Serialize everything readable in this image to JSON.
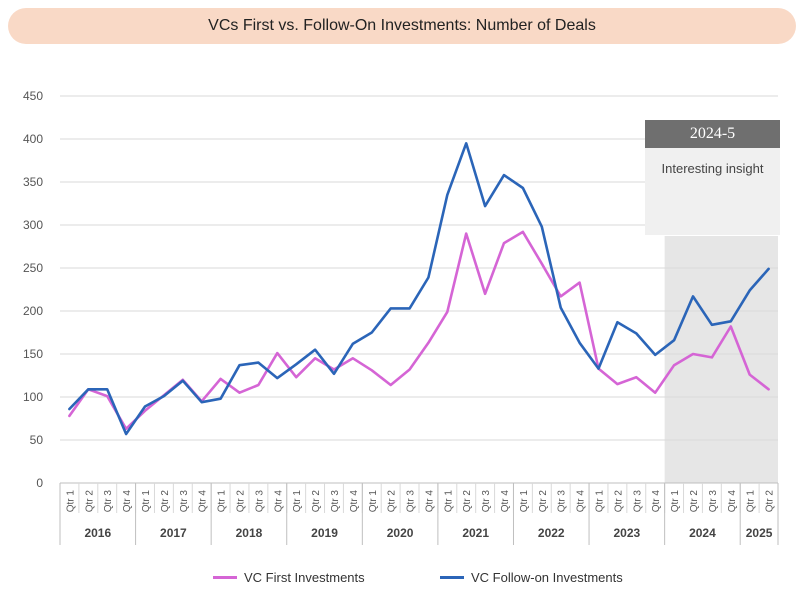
{
  "chart_data": {
    "type": "line",
    "title": "VCs First vs. Follow-On Investments: Number of Deals",
    "xlabel": "",
    "ylabel": "",
    "ylim": [
      0,
      450
    ],
    "y_ticks": [
      0,
      50,
      100,
      150,
      200,
      250,
      300,
      350,
      400,
      450
    ],
    "grid": true,
    "quarters": [
      "Qtr 1",
      "Qtr 2",
      "Qtr 3",
      "Qtr 4"
    ],
    "year_groups": [
      {
        "year": "2016",
        "quarters": 4
      },
      {
        "year": "2017",
        "quarters": 4
      },
      {
        "year": "2018",
        "quarters": 4
      },
      {
        "year": "2019",
        "quarters": 4
      },
      {
        "year": "2020",
        "quarters": 4
      },
      {
        "year": "2021",
        "quarters": 4
      },
      {
        "year": "2022",
        "quarters": 4
      },
      {
        "year": "2023",
        "quarters": 4
      },
      {
        "year": "2024",
        "quarters": 4
      },
      {
        "year": "2025",
        "quarters": 2
      }
    ],
    "series": [
      {
        "name": "VC First Investments",
        "color": "#d565d5",
        "values": [
          78,
          109,
          101,
          63,
          84,
          102,
          120,
          95,
          121,
          105,
          114,
          151,
          123,
          145,
          132,
          145,
          131,
          114,
          132,
          163,
          199,
          290,
          220,
          279,
          292,
          255,
          217,
          233,
          133,
          115,
          123,
          105,
          137,
          150,
          146,
          182,
          126,
          109
        ]
      },
      {
        "name": "VC Follow-on Investments",
        "color": "#2b65b8",
        "values": [
          86,
          109,
          109,
          57,
          89,
          101,
          119,
          94,
          98,
          137,
          140,
          122,
          138,
          155,
          127,
          162,
          175,
          203,
          203,
          239,
          335,
          395,
          322,
          358,
          343,
          298,
          204,
          163,
          133,
          187,
          174,
          149,
          166,
          217,
          184,
          188,
          224,
          249
        ]
      }
    ],
    "highlight": {
      "from_index": 32,
      "to_index": 37,
      "color": "#e6e6e6",
      "label": "2024-5",
      "text": "Interesting insight"
    },
    "legend_position": "bottom"
  }
}
